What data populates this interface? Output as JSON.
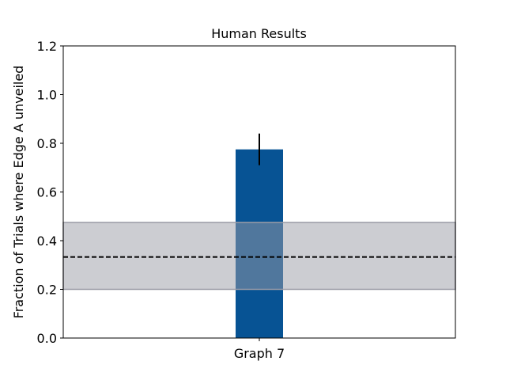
{
  "chart_data": {
    "type": "bar",
    "title": "Human Results",
    "xlabel": "",
    "ylabel": "Fraction of Trials where Edge A unveiled",
    "categories": [
      "Graph 7"
    ],
    "values": [
      0.775
    ],
    "error_bars": [
      {
        "low": 0.71,
        "high": 0.84
      }
    ],
    "ylim": [
      0,
      1.2
    ],
    "yticks": [
      "0.0",
      "0.2",
      "0.4",
      "0.6",
      "0.8",
      "1.0",
      "1.2"
    ],
    "reference_line": {
      "value": 0.333,
      "style": "dashed"
    },
    "reference_band": {
      "low": 0.2,
      "high": 0.475
    },
    "grid": false,
    "legend": "none"
  },
  "colors": {
    "bar": "#075394",
    "band": "#9a9ba6",
    "reference_line": "#000000",
    "error_bar": "#000000",
    "axes": "#000000"
  }
}
